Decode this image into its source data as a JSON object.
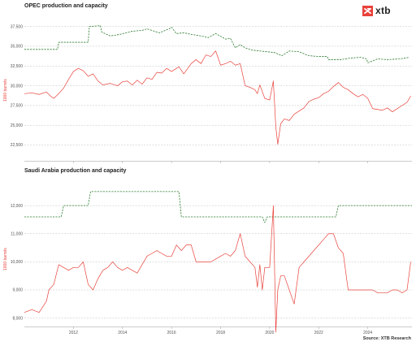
{
  "brand": {
    "name": "xtb",
    "logo_icon": "xtb-logo-icon",
    "accent": "#e8413a"
  },
  "source": "Source: XTB Research",
  "colors": {
    "production": "#e8413a",
    "capacity": "#2e7d32",
    "grid": "#bfbfbf"
  },
  "chart_data": [
    {
      "type": "line",
      "title": "OPEC production and capacity",
      "ylabel": "1000 barrels",
      "xlabel": "",
      "grid": true,
      "ylim": [
        20500,
        39000
      ],
      "xlim": [
        2010.0,
        2025.8
      ],
      "yticks": [
        "22,500",
        "25,000",
        "27,500",
        "30,000",
        "32,500",
        "35,000",
        "37,500"
      ],
      "ytick_values": [
        22500,
        25000,
        27500,
        30000,
        32500,
        35000,
        37500
      ],
      "series": [
        {
          "key": "capacity",
          "style": "dashed",
          "x": [
            2010.0,
            2011.35,
            2011.4,
            2012.6,
            2012.65,
            2013.1,
            2013.15,
            2013.5,
            2013.9,
            2014.4,
            2014.8,
            2015.0,
            2015.5,
            2015.9,
            2016.0,
            2016.2,
            2016.5,
            2016.8,
            2017.2,
            2017.5,
            2017.8,
            2018.2,
            2018.4,
            2018.6,
            2018.8,
            2019.0,
            2019.3,
            2019.6,
            2019.9,
            2020.2,
            2020.5,
            2020.8,
            2021.2,
            2021.6,
            2022.0,
            2022.35,
            2022.4,
            2022.9,
            2023.3,
            2023.7,
            2023.95,
            2024.0,
            2024.4,
            2024.8,
            2025.3,
            2025.7
          ],
          "y": [
            34600,
            34600,
            35500,
            35500,
            37500,
            37600,
            36800,
            36300,
            36500,
            36900,
            37000,
            37200,
            36700,
            37200,
            37400,
            36600,
            36700,
            36500,
            36300,
            36100,
            36600,
            35900,
            36000,
            34800,
            35200,
            34800,
            34500,
            34400,
            34300,
            34200,
            33800,
            34400,
            34300,
            33800,
            33700,
            33700,
            33300,
            33300,
            33500,
            33600,
            33400,
            32900,
            33400,
            33300,
            33400,
            33600
          ]
        },
        {
          "key": "production",
          "style": "solid",
          "x": [
            2010.0,
            2010.3,
            2010.6,
            2010.9,
            2011.1,
            2011.2,
            2011.4,
            2011.6,
            2011.8,
            2012.0,
            2012.2,
            2012.4,
            2012.6,
            2012.8,
            2013.0,
            2013.2,
            2013.5,
            2013.8,
            2014.0,
            2014.2,
            2014.4,
            2014.6,
            2014.8,
            2015.0,
            2015.2,
            2015.4,
            2015.6,
            2015.8,
            2016.0,
            2016.3,
            2016.5,
            2016.8,
            2017.0,
            2017.2,
            2017.4,
            2017.6,
            2017.8,
            2018.0,
            2018.2,
            2018.4,
            2018.6,
            2018.8,
            2019.0,
            2019.2,
            2019.4,
            2019.5,
            2019.6,
            2019.8,
            2020.0,
            2020.15,
            2020.25,
            2020.33,
            2020.45,
            2020.6,
            2020.8,
            2021.0,
            2021.2,
            2021.4,
            2021.6,
            2021.8,
            2022.0,
            2022.2,
            2022.4,
            2022.6,
            2022.8,
            2023.0,
            2023.2,
            2023.4,
            2023.6,
            2023.8,
            2024.0,
            2024.2,
            2024.4,
            2024.6,
            2024.8,
            2025.0,
            2025.2,
            2025.4,
            2025.6,
            2025.75
          ],
          "y": [
            29000,
            29100,
            28900,
            29200,
            28600,
            28400,
            29000,
            29700,
            30800,
            31800,
            32200,
            31900,
            31200,
            31500,
            30600,
            30100,
            30300,
            30000,
            30500,
            30600,
            30100,
            30700,
            30200,
            31000,
            30800,
            31700,
            31600,
            32200,
            31800,
            32400,
            31500,
            32800,
            33300,
            32800,
            33900,
            33700,
            34400,
            32600,
            32800,
            33100,
            32600,
            32800,
            30000,
            29800,
            29500,
            29000,
            30100,
            28400,
            28200,
            30600,
            24800,
            22600,
            25200,
            25800,
            25600,
            26400,
            26800,
            27200,
            28000,
            28300,
            28500,
            29000,
            29300,
            29900,
            30400,
            29800,
            29500,
            29000,
            28600,
            28900,
            28400,
            27100,
            27000,
            26900,
            27200,
            26700,
            27100,
            27500,
            27900,
            28700
          ]
        }
      ],
      "xticks": [
        "2012",
        "2014",
        "2016",
        "2018",
        "2020",
        "2022",
        "2024"
      ],
      "xtick_values": [
        2012,
        2014,
        2016,
        2018,
        2020,
        2022,
        2024
      ]
    },
    {
      "type": "line",
      "title": "Saudi Arabia production and capacity",
      "ylabel": "1000 barrels",
      "xlabel": "",
      "grid": true,
      "ylim": [
        7700,
        12900
      ],
      "xlim": [
        2010.0,
        2025.8
      ],
      "yticks": [
        "8,000",
        "9,000",
        "10,000",
        "11,000",
        "12,000"
      ],
      "ytick_values": [
        8000,
        9000,
        10000,
        11000,
        12000
      ],
      "series": [
        {
          "key": "capacity",
          "style": "dashed",
          "x": [
            2010.0,
            2011.5,
            2011.6,
            2012.6,
            2012.7,
            2016.3,
            2016.4,
            2019.7,
            2019.8,
            2019.9,
            2022.7,
            2022.8,
            2025.8
          ],
          "y": [
            11600,
            11600,
            12000,
            12000,
            12500,
            12500,
            11600,
            11600,
            11400,
            11600,
            11600,
            12000,
            12000
          ]
        },
        {
          "key": "production",
          "style": "solid",
          "x": [
            2010.0,
            2010.3,
            2010.6,
            2010.9,
            2011.0,
            2011.2,
            2011.4,
            2011.6,
            2011.8,
            2012.0,
            2012.2,
            2012.4,
            2012.6,
            2012.8,
            2013.0,
            2013.2,
            2013.4,
            2013.6,
            2013.8,
            2014.0,
            2014.2,
            2014.4,
            2014.6,
            2014.8,
            2015.0,
            2015.2,
            2015.4,
            2015.6,
            2015.8,
            2016.0,
            2016.2,
            2016.4,
            2016.6,
            2016.8,
            2017.0,
            2017.2,
            2017.4,
            2017.6,
            2017.8,
            2018.0,
            2018.2,
            2018.4,
            2018.6,
            2018.8,
            2019.0,
            2019.2,
            2019.4,
            2019.5,
            2019.6,
            2019.7,
            2019.8,
            2020.0,
            2020.15,
            2020.25,
            2020.33,
            2020.45,
            2020.6,
            2020.8,
            2021.0,
            2021.2,
            2021.4,
            2021.6,
            2021.8,
            2022.0,
            2022.2,
            2022.4,
            2022.6,
            2022.8,
            2023.0,
            2023.2,
            2023.4,
            2023.6,
            2023.8,
            2024.0,
            2024.2,
            2024.4,
            2024.6,
            2024.8,
            2025.0,
            2025.2,
            2025.4,
            2025.6,
            2025.75
          ],
          "y": [
            8200,
            8300,
            8200,
            8600,
            9000,
            9200,
            9900,
            9800,
            9700,
            9800,
            9800,
            10000,
            9200,
            9000,
            9400,
            9700,
            9800,
            10000,
            9800,
            9700,
            9800,
            9700,
            9600,
            9900,
            10200,
            10300,
            10400,
            10300,
            10200,
            10200,
            10600,
            10400,
            10600,
            10600,
            10000,
            10000,
            10000,
            10000,
            10100,
            10200,
            10300,
            10200,
            10400,
            11000,
            10200,
            10000,
            9800,
            9100,
            9900,
            9000,
            9800,
            9800,
            12000,
            7500,
            9000,
            9500,
            9500,
            9000,
            8500,
            9800,
            10000,
            10200,
            10400,
            10600,
            10800,
            11000,
            11000,
            10500,
            10300,
            9000,
            9000,
            9000,
            9000,
            9000,
            9000,
            8900,
            8900,
            8900,
            9000,
            9000,
            8900,
            9000,
            10000
          ]
        }
      ],
      "xticks": [
        "2012",
        "2014",
        "2016",
        "2018",
        "2020",
        "2022",
        "2024"
      ],
      "xtick_values": [
        2012,
        2014,
        2016,
        2018,
        2020,
        2022,
        2024
      ]
    }
  ]
}
